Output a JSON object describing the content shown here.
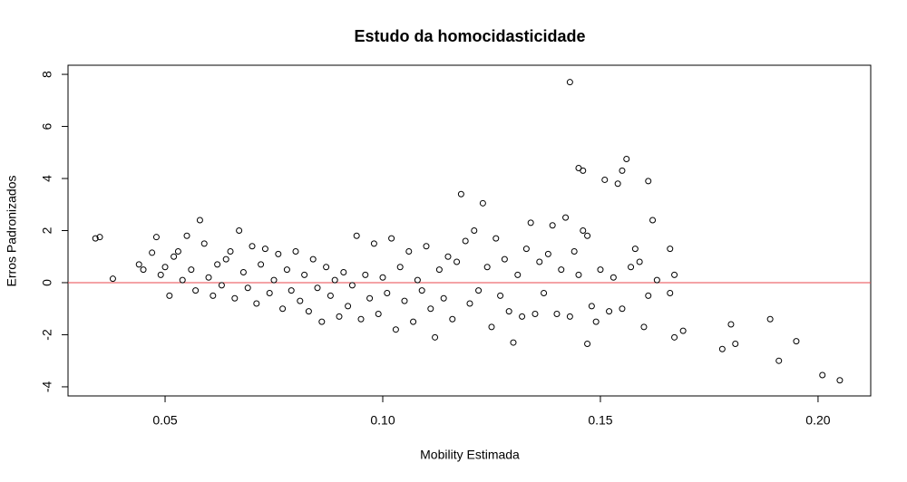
{
  "chart_data": {
    "type": "scatter",
    "title": "Estudo da homocidasticidade",
    "x_label": "Mobility Estimada",
    "y_label": "Erros Padronizados",
    "xlim": [
      0.0277,
      0.2121
    ],
    "ylim": [
      -4.35,
      8.35
    ],
    "xticks": [
      0.05,
      {
        "value": 0.1,
        "label": "0.10"
      },
      0.15,
      {
        "value": 0.2,
        "label": "0.20"
      }
    ],
    "yticks": [
      -4,
      -2,
      0,
      2,
      4,
      6,
      8
    ],
    "color": "#000000",
    "reference_line": {
      "y": 0,
      "color": "#e8474c"
    },
    "x": [
      0.034,
      0.035,
      0.038,
      0.143,
      0.145,
      0.146,
      0.156,
      0.155,
      0.151,
      0.154,
      0.161,
      0.162,
      0.118,
      0.123,
      0.166,
      0.178,
      0.18,
      0.181,
      0.189,
      0.191,
      0.195,
      0.201,
      0.205,
      0.167,
      0.169,
      0.147,
      0.13,
      0.112,
      0.044,
      0.045,
      0.047,
      0.048,
      0.049,
      0.05,
      0.051,
      0.052,
      0.053,
      0.054,
      0.055,
      0.056,
      0.057,
      0.058,
      0.059,
      0.06,
      0.061,
      0.062,
      0.063,
      0.064,
      0.065,
      0.066,
      0.067,
      0.068,
      0.069,
      0.07,
      0.071,
      0.072,
      0.073,
      0.074,
      0.075,
      0.076,
      0.077,
      0.078,
      0.079,
      0.08,
      0.081,
      0.082,
      0.083,
      0.084,
      0.085,
      0.086,
      0.087,
      0.088,
      0.089,
      0.09,
      0.091,
      0.092,
      0.093,
      0.094,
      0.095,
      0.096,
      0.097,
      0.098,
      0.099,
      0.1,
      0.101,
      0.102,
      0.103,
      0.104,
      0.105,
      0.106,
      0.107,
      0.108,
      0.109,
      0.11,
      0.111,
      0.113,
      0.114,
      0.115,
      0.116,
      0.117,
      0.119,
      0.12,
      0.121,
      0.122,
      0.124,
      0.125,
      0.126,
      0.127,
      0.128,
      0.129,
      0.131,
      0.132,
      0.133,
      0.134,
      0.135,
      0.136,
      0.137,
      0.138,
      0.139,
      0.14,
      0.141,
      0.142,
      0.143,
      0.144,
      0.145,
      0.146,
      0.147,
      0.148,
      0.149,
      0.15,
      0.152,
      0.153,
      0.155,
      0.157,
      0.158,
      0.159,
      0.16,
      0.161,
      0.163,
      0.166,
      0.167
    ],
    "y": [
      1.7,
      1.75,
      0.15,
      7.7,
      4.4,
      4.3,
      4.75,
      4.3,
      3.95,
      3.8,
      3.9,
      2.4,
      3.4,
      3.05,
      1.3,
      -2.55,
      -1.6,
      -2.35,
      -1.4,
      -3.0,
      -2.25,
      -3.55,
      -3.75,
      -2.1,
      -1.85,
      -2.35,
      -2.3,
      -2.1,
      0.7,
      0.5,
      1.15,
      1.75,
      0.3,
      0.6,
      -0.5,
      1.0,
      1.2,
      0.1,
      1.8,
      0.5,
      -0.3,
      2.4,
      1.5,
      0.2,
      -0.5,
      0.7,
      -0.1,
      0.9,
      1.2,
      -0.6,
      2.0,
      0.4,
      -0.2,
      1.4,
      -0.8,
      0.7,
      1.3,
      -0.4,
      0.1,
      1.1,
      -1.0,
      0.5,
      -0.3,
      1.2,
      -0.7,
      0.3,
      -1.1,
      0.9,
      -0.2,
      -1.5,
      0.6,
      -0.5,
      0.1,
      -1.3,
      0.4,
      -0.9,
      -0.1,
      1.8,
      -1.4,
      0.3,
      -0.6,
      1.5,
      -1.2,
      0.2,
      -0.4,
      1.7,
      -1.8,
      0.6,
      -0.7,
      1.2,
      -1.5,
      0.1,
      -0.3,
      1.4,
      -1.0,
      0.5,
      -0.6,
      1.0,
      -1.4,
      0.8,
      1.6,
      -0.8,
      2.0,
      -0.3,
      0.6,
      -1.7,
      1.7,
      -0.5,
      0.9,
      -1.1,
      0.3,
      -1.3,
      1.3,
      2.3,
      -1.2,
      0.8,
      -0.4,
      1.1,
      2.2,
      -1.2,
      0.5,
      2.5,
      -1.3,
      1.2,
      0.3,
      2.0,
      1.8,
      -0.9,
      -1.5,
      0.5,
      -1.1,
      0.2,
      -1.0,
      0.6,
      1.3,
      0.8,
      -1.7,
      -0.5,
      0.1,
      -0.4,
      0.3
    ]
  }
}
